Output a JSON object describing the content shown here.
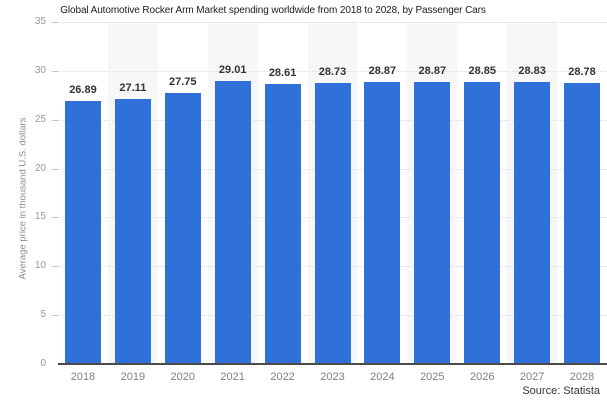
{
  "title": "Global Automotive Rocker Arm Market spending worldwide from 2018 to 2028, by Passenger Cars",
  "source": "Source: Statista",
  "colors": {
    "bar": "#2f71d8",
    "band": "#f7f7f7",
    "gridline": "#dcdcdc",
    "axis_line": "#4a4a4a",
    "value_label": "#333333",
    "tick_label": "#999999",
    "x_label": "#808080"
  },
  "chart_data": {
    "type": "bar",
    "categories": [
      "2018",
      "2019",
      "2020",
      "2021",
      "2022",
      "2023",
      "2024",
      "2025",
      "2026",
      "2027",
      "2028"
    ],
    "values": [
      26.89,
      27.11,
      27.75,
      29.01,
      28.61,
      28.73,
      28.87,
      28.87,
      28.85,
      28.83,
      28.78
    ],
    "value_labels": [
      "26.89",
      "27.11",
      "27.75",
      "29.01",
      "28.61",
      "28.73",
      "28.87",
      "28.87",
      "28.85",
      "28.83",
      "28.78"
    ],
    "title": "Global Automotive Rocker Arm Market spending worldwide from 2018 to 2028, by Passenger Cars",
    "xlabel": "",
    "ylabel": "Average price in thousand U.S. dollars",
    "ylim": [
      0,
      35
    ],
    "yticks": [
      0,
      5,
      10,
      15,
      20,
      25,
      30,
      35
    ],
    "grid": "horizontal-dotted",
    "legend": "none",
    "band_columns": "alternating (2019, 2021, 2023, 2025, 2027)"
  }
}
